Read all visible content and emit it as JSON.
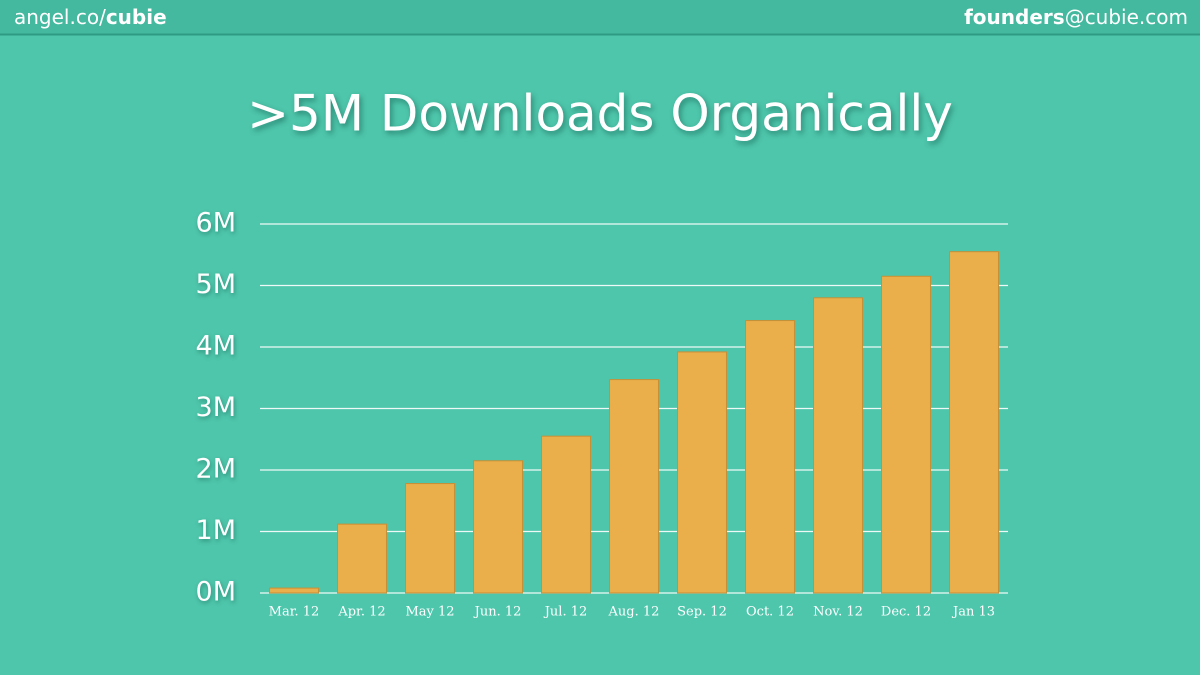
{
  "header": {
    "left_prefix": "angel.co/",
    "left_bold": "cubie",
    "right_bold": "founders",
    "right_suffix": "@cubie.com"
  },
  "chart_data": {
    "type": "bar",
    "title": ">5M Downloads Organically",
    "categories": [
      "Mar. 12",
      "Apr. 12",
      "May 12",
      "Jun. 12",
      "Jul. 12",
      "Aug. 12",
      "Sep. 12",
      "Oct. 12",
      "Nov. 12",
      "Dec. 12",
      "Jan 13"
    ],
    "values": [
      80000,
      1120000,
      1780000,
      2150000,
      2550000,
      3470000,
      3920000,
      4430000,
      4800000,
      5150000,
      5550000
    ],
    "color": "#eaae4b",
    "ylim": [
      0,
      6000000
    ],
    "yticks": [
      {
        "value": 0,
        "label": "0M"
      },
      {
        "value": 1000000,
        "label": "1M"
      },
      {
        "value": 2000000,
        "label": "2M"
      },
      {
        "value": 3000000,
        "label": "3M"
      },
      {
        "value": 4000000,
        "label": "4M"
      },
      {
        "value": 5000000,
        "label": "5M"
      },
      {
        "value": 6000000,
        "label": "6M"
      }
    ],
    "grid": true
  }
}
